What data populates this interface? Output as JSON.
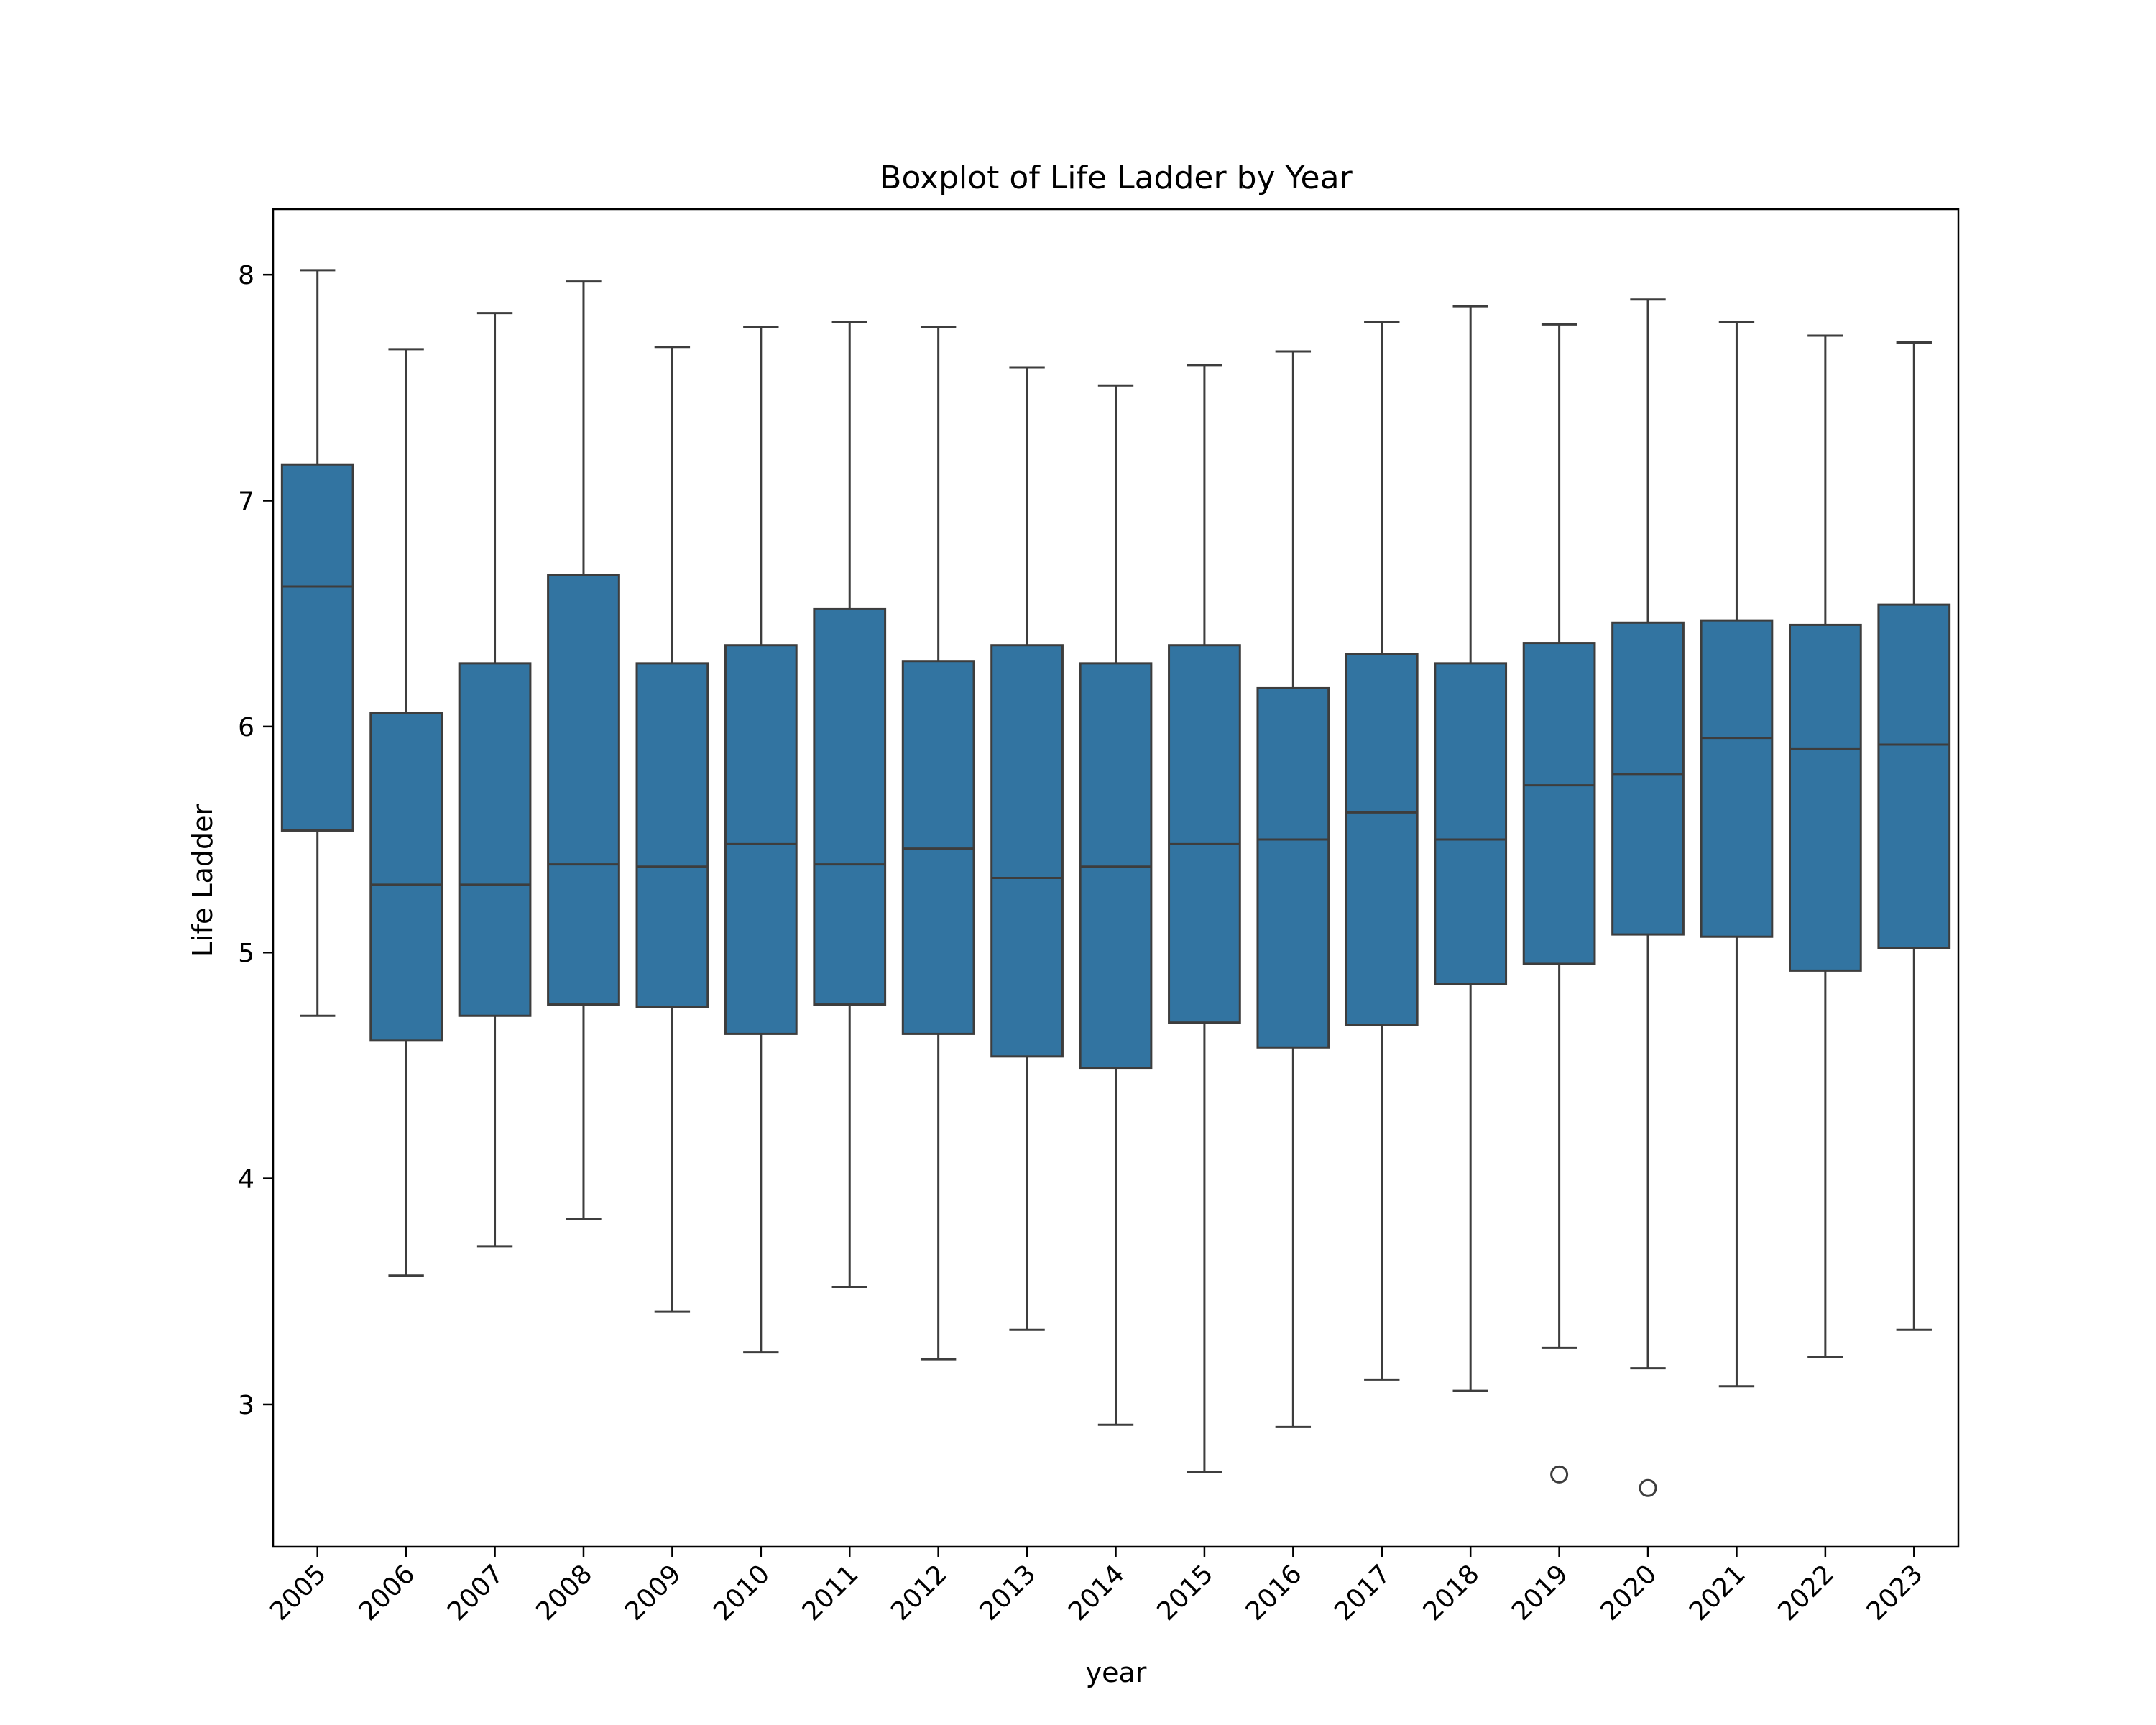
{
  "chart_data": {
    "type": "box",
    "title": "Boxplot of Life Ladder by Year",
    "xlabel": "year",
    "ylabel": "Life Ladder",
    "ylim": [
      2.37,
      8.29
    ],
    "yticks": [
      3,
      4,
      5,
      6,
      7,
      8
    ],
    "grid": false,
    "legend": "none",
    "box_color": "#3274a1",
    "line_color": "#3d3d3d",
    "categories": [
      "2005",
      "2006",
      "2007",
      "2008",
      "2009",
      "2010",
      "2011",
      "2012",
      "2013",
      "2014",
      "2015",
      "2016",
      "2017",
      "2018",
      "2019",
      "2020",
      "2021",
      "2022",
      "2023"
    ],
    "boxes": [
      {
        "year": "2005",
        "whisker_low": 4.72,
        "q1": 5.54,
        "median": 6.62,
        "q3": 7.16,
        "whisker_high": 8.02,
        "outliers": []
      },
      {
        "year": "2006",
        "whisker_low": 3.57,
        "q1": 4.61,
        "median": 5.3,
        "q3": 6.06,
        "whisker_high": 7.67,
        "outliers": []
      },
      {
        "year": "2007",
        "whisker_low": 3.7,
        "q1": 4.72,
        "median": 5.3,
        "q3": 6.28,
        "whisker_high": 7.83,
        "outliers": []
      },
      {
        "year": "2008",
        "whisker_low": 3.82,
        "q1": 4.77,
        "median": 5.39,
        "q3": 6.67,
        "whisker_high": 7.97,
        "outliers": []
      },
      {
        "year": "2009",
        "whisker_low": 3.41,
        "q1": 4.76,
        "median": 5.38,
        "q3": 6.28,
        "whisker_high": 7.68,
        "outliers": []
      },
      {
        "year": "2010",
        "whisker_low": 3.23,
        "q1": 4.64,
        "median": 5.48,
        "q3": 6.36,
        "whisker_high": 7.77,
        "outliers": []
      },
      {
        "year": "2011",
        "whisker_low": 3.52,
        "q1": 4.77,
        "median": 5.39,
        "q3": 6.52,
        "whisker_high": 7.79,
        "outliers": []
      },
      {
        "year": "2012",
        "whisker_low": 3.2,
        "q1": 4.64,
        "median": 5.46,
        "q3": 6.29,
        "whisker_high": 7.77,
        "outliers": []
      },
      {
        "year": "2013",
        "whisker_low": 3.33,
        "q1": 4.54,
        "median": 5.33,
        "q3": 6.36,
        "whisker_high": 7.59,
        "outliers": []
      },
      {
        "year": "2014",
        "whisker_low": 2.91,
        "q1": 4.49,
        "median": 5.38,
        "q3": 6.28,
        "whisker_high": 7.51,
        "outliers": []
      },
      {
        "year": "2015",
        "whisker_low": 2.7,
        "q1": 4.69,
        "median": 5.48,
        "q3": 6.36,
        "whisker_high": 7.6,
        "outliers": []
      },
      {
        "year": "2016",
        "whisker_low": 2.9,
        "q1": 4.58,
        "median": 5.5,
        "q3": 6.17,
        "whisker_high": 7.66,
        "outliers": []
      },
      {
        "year": "2017",
        "whisker_low": 3.11,
        "q1": 4.68,
        "median": 5.62,
        "q3": 6.32,
        "whisker_high": 7.79,
        "outliers": []
      },
      {
        "year": "2018",
        "whisker_low": 3.06,
        "q1": 4.86,
        "median": 5.5,
        "q3": 6.28,
        "whisker_high": 7.86,
        "outliers": []
      },
      {
        "year": "2019",
        "whisker_low": 3.25,
        "q1": 4.95,
        "median": 5.74,
        "q3": 6.37,
        "whisker_high": 7.78,
        "outliers": [
          2.69
        ]
      },
      {
        "year": "2020",
        "whisker_low": 3.16,
        "q1": 5.08,
        "median": 5.79,
        "q3": 6.46,
        "whisker_high": 7.89,
        "outliers": [
          2.63
        ]
      },
      {
        "year": "2021",
        "whisker_low": 3.08,
        "q1": 5.07,
        "median": 5.95,
        "q3": 6.47,
        "whisker_high": 7.79,
        "outliers": []
      },
      {
        "year": "2022",
        "whisker_low": 3.21,
        "q1": 4.92,
        "median": 5.9,
        "q3": 6.45,
        "whisker_high": 7.73,
        "outliers": []
      },
      {
        "year": "2023",
        "whisker_low": 3.33,
        "q1": 5.02,
        "median": 5.92,
        "q3": 6.54,
        "whisker_high": 7.7,
        "outliers": []
      }
    ]
  }
}
